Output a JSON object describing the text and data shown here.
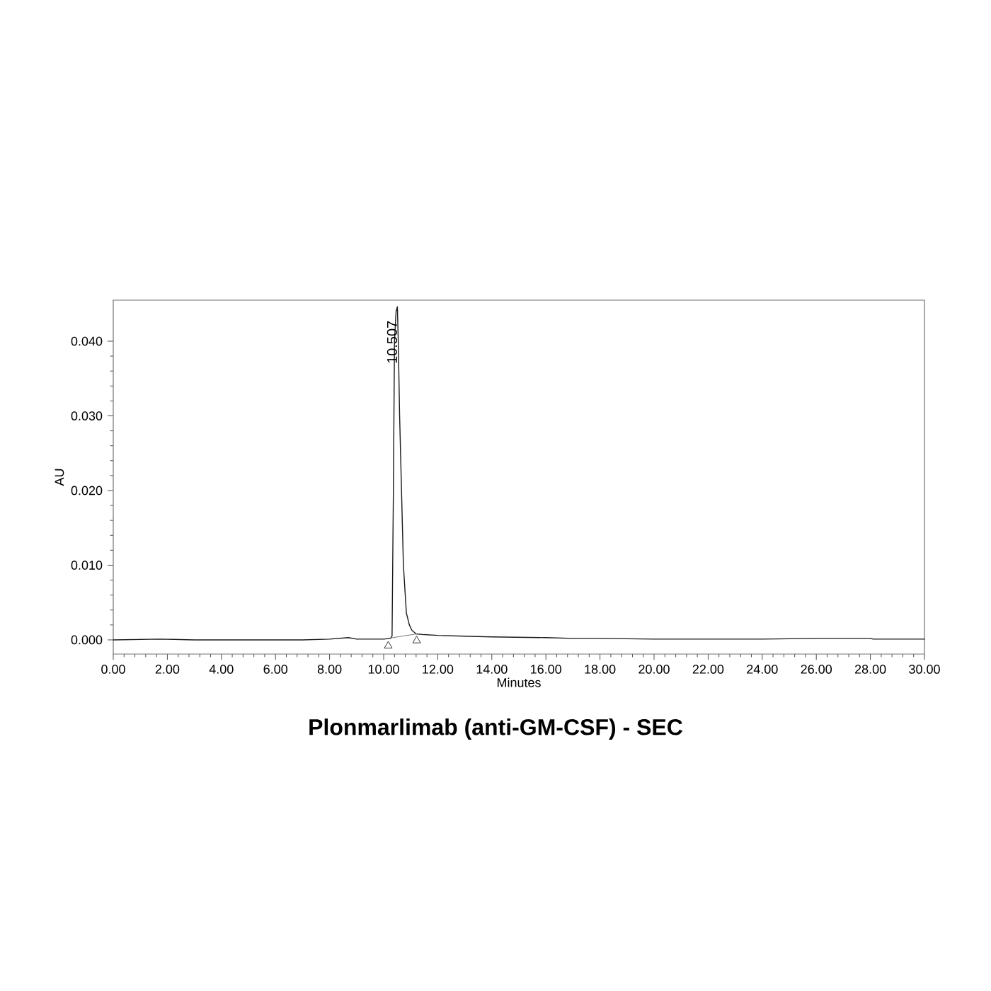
{
  "chart_data": {
    "type": "line",
    "title": "Plonmarlimab (anti-GM-CSF) - SEC",
    "xlabel": "Minutes",
    "ylabel": "AU",
    "xlim": [
      0,
      30
    ],
    "ylim": [
      -0.0019,
      0.0455
    ],
    "xticks": [
      {
        "value": 0,
        "label": "0.00"
      },
      {
        "value": 2,
        "label": "2.00"
      },
      {
        "value": 4,
        "label": "4.00"
      },
      {
        "value": 6,
        "label": "6.00"
      },
      {
        "value": 8,
        "label": "8.00"
      },
      {
        "value": 10,
        "label": "10.00"
      },
      {
        "value": 12,
        "label": "12.00"
      },
      {
        "value": 14,
        "label": "14.00"
      },
      {
        "value": 16,
        "label": "16.00"
      },
      {
        "value": 18,
        "label": "18.00"
      },
      {
        "value": 20,
        "label": "20.00"
      },
      {
        "value": 22,
        "label": "22.00"
      },
      {
        "value": 24,
        "label": "24.00"
      },
      {
        "value": 26,
        "label": "26.00"
      },
      {
        "value": 28,
        "label": "28.00"
      },
      {
        "value": 30,
        "label": "30.00"
      }
    ],
    "yticks": [
      {
        "value": 0,
        "label": "0.000"
      },
      {
        "value": 0.01,
        "label": "0.010"
      },
      {
        "value": 0.02,
        "label": "0.020"
      },
      {
        "value": 0.03,
        "label": "0.030"
      },
      {
        "value": 0.04,
        "label": "0.040"
      }
    ],
    "series": [
      {
        "color": "#1a1a1a",
        "x": [
          0,
          1.7,
          3,
          5,
          7,
          8,
          8.7,
          9,
          9.6,
          10,
          10.25,
          10.31,
          10.36,
          10.4,
          10.46,
          10.507,
          10.54,
          10.59,
          10.66,
          10.73,
          10.84,
          10.95,
          11.04,
          11.2,
          11.5,
          12,
          13,
          14,
          16,
          17,
          18,
          20,
          22,
          24,
          26,
          28,
          28.1,
          30
        ],
        "values": [
          0,
          0.0001,
          0,
          0,
          0,
          0.0001,
          0.0003,
          0.0001,
          0.0001,
          0.0001,
          0.0002,
          0.0005,
          0.02,
          0.04,
          0.044,
          0.0446,
          0.04,
          0.03,
          0.02,
          0.01,
          0.0036,
          0.002,
          0.0013,
          0.0008,
          0.0007,
          0.0006,
          0.0005,
          0.0004,
          0.0003,
          0.0002,
          0.0002,
          0.0001,
          0.0001,
          0.0001,
          0.0002,
          0.0002,
          0.0001,
          0.0001
        ]
      },
      {
        "type": "line",
        "color": "#555555",
        "x": [
          10.17,
          11.22
        ],
        "values": [
          0.0002,
          0.0008
        ]
      },
      {
        "type": "scatter",
        "marker": "triangle",
        "color": "#333333",
        "x": [
          10.17,
          11.22
        ],
        "values": [
          -0.0008,
          -0.0001
        ]
      }
    ],
    "annotations": [
      {
        "text": "10.507",
        "x": 10.507,
        "y": 0.0446
      }
    ],
    "grid": false
  }
}
